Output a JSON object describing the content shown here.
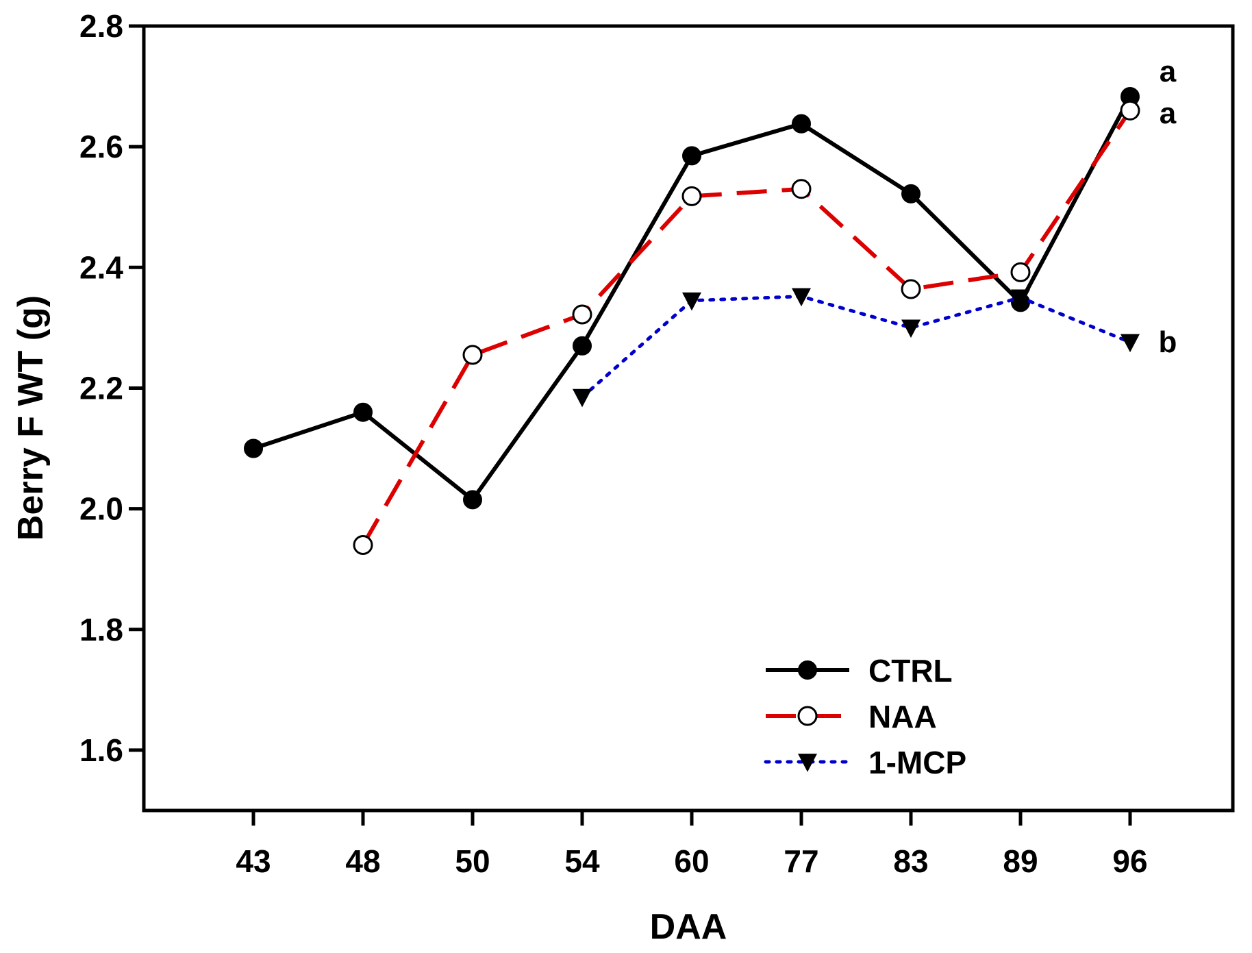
{
  "chart_data": {
    "type": "line",
    "title": "",
    "xlabel": "DAA",
    "ylabel": "Berry F WT (g)",
    "categories": [
      "43",
      "48",
      "50",
      "54",
      "60",
      "77",
      "83",
      "89",
      "96"
    ],
    "ylim": [
      1.5,
      2.8
    ],
    "yticks": [
      1.6,
      1.8,
      2.0,
      2.2,
      2.4,
      2.6,
      2.8
    ],
    "ytick_labels": [
      "1.6",
      "1.8",
      "2.0",
      "2.2",
      "2.4",
      "2.6",
      "2.8"
    ],
    "grid": false,
    "legend_position": "bottom-right",
    "series": [
      {
        "name": "CTRL",
        "values": [
          2.1,
          2.16,
          2.015,
          2.27,
          2.585,
          2.638,
          2.522,
          2.342,
          2.683
        ],
        "color": "#000000",
        "line_style": "solid",
        "marker": "filled-circle"
      },
      {
        "name": "NAA",
        "values": [
          null,
          1.94,
          2.255,
          2.322,
          2.518,
          2.53,
          2.364,
          2.392,
          2.66
        ],
        "color": "#dd0000",
        "line_style": "dashed",
        "marker": "open-circle"
      },
      {
        "name": "1-MCP",
        "values": [
          null,
          null,
          null,
          2.185,
          2.345,
          2.352,
          2.3,
          2.35,
          2.276
        ],
        "color": "#0000cc",
        "line_style": "dotted",
        "marker": "filled-triangle-down"
      }
    ],
    "annotations": [
      {
        "text": "a",
        "series": "CTRL"
      },
      {
        "text": "a",
        "series": "NAA"
      },
      {
        "text": "b",
        "series": "1-MCP"
      }
    ]
  }
}
